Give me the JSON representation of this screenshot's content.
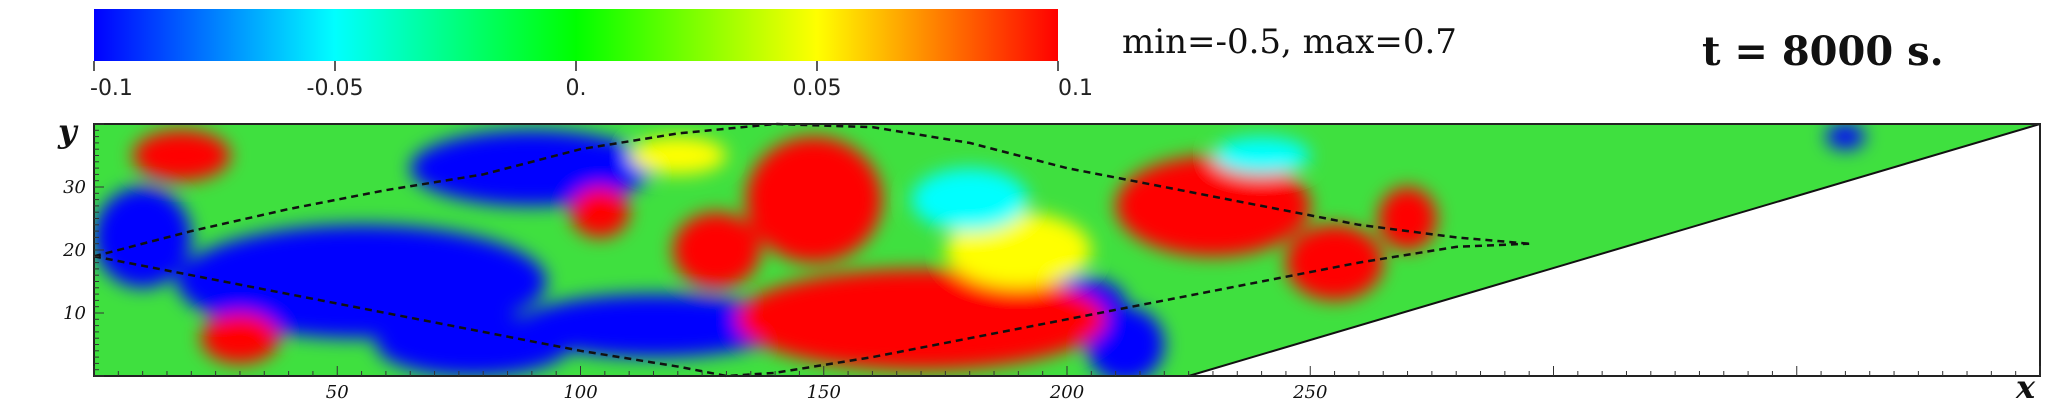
{
  "chart_data": {
    "type": "heatmap",
    "colorbar": {
      "min": -0.1,
      "max": 0.1,
      "tick_labels": [
        "-0.1",
        "-0.05",
        "0.",
        "0.05",
        "0.1"
      ],
      "tick_values": [
        -0.1,
        -0.05,
        0,
        0.05,
        0.1
      ],
      "colormap": [
        "#0000ff",
        "#00ffff",
        "#00ff00",
        "#ffff00",
        "#ff0000"
      ]
    },
    "range_text": "min=-0.5, max=0.7",
    "time_text": "t = 8000 s.",
    "xlabel": "x",
    "ylabel": "y",
    "xlim": [
      0,
      400
    ],
    "ylim": [
      0,
      40
    ],
    "x_ticks": [
      50,
      100,
      150,
      200,
      250
    ],
    "x_tick_labels": [
      "50",
      "100",
      "150",
      "200",
      "250"
    ],
    "y_ticks": [
      10,
      20,
      30
    ],
    "y_tick_labels": [
      "10",
      "20",
      "30"
    ],
    "domain_boundary": [
      [
        225,
        0
      ],
      [
        400,
        40
      ]
    ],
    "dashed_curves": [
      {
        "x": [
          0,
          20,
          40,
          60,
          80,
          100,
          120,
          140,
          160,
          180,
          200,
          220,
          240,
          260,
          280,
          295
        ],
        "y": [
          19,
          23,
          26.5,
          29.5,
          32,
          36,
          38.5,
          40,
          39.5,
          37,
          33,
          30,
          27,
          24,
          22,
          21
        ]
      },
      {
        "x": [
          0,
          20,
          40,
          60,
          80,
          100,
          120,
          130,
          140,
          160,
          180,
          200,
          220,
          240,
          260,
          280,
          295
        ],
        "y": [
          19,
          16,
          13,
          10,
          7,
          4,
          1.5,
          0,
          0.5,
          3,
          6,
          9,
          12,
          15,
          18,
          20.5,
          21
        ]
      }
    ],
    "regions": [
      {
        "value": -0.1,
        "cx": 55,
        "cy": 15,
        "rx": 38,
        "ry": 9
      },
      {
        "value": -0.1,
        "cx": 90,
        "cy": 33,
        "rx": 25,
        "ry": 6
      },
      {
        "value": -0.1,
        "cx": 10,
        "cy": 22,
        "rx": 10,
        "ry": 8
      },
      {
        "value": -0.1,
        "cx": 115,
        "cy": 8,
        "rx": 28,
        "ry": 5
      },
      {
        "value": -0.1,
        "cx": 78,
        "cy": 5,
        "rx": 20,
        "ry": 5
      },
      {
        "value": -0.1,
        "cx": 212,
        "cy": 5,
        "rx": 8,
        "ry": 6
      },
      {
        "value": -0.1,
        "cx": 200,
        "cy": 12,
        "rx": 12,
        "ry": 4
      },
      {
        "value": 0.1,
        "cx": 170,
        "cy": 9,
        "rx": 38,
        "ry": 8
      },
      {
        "value": 0.1,
        "cx": 148,
        "cy": 28,
        "rx": 14,
        "ry": 10
      },
      {
        "value": 0.1,
        "cx": 230,
        "cy": 27,
        "rx": 20,
        "ry": 8
      },
      {
        "value": 0.1,
        "cx": 128,
        "cy": 20,
        "rx": 9,
        "ry": 6
      },
      {
        "value": 0.1,
        "cx": 18,
        "cy": 35,
        "rx": 10,
        "ry": 4
      },
      {
        "value": 0.1,
        "cx": 30,
        "cy": 6,
        "rx": 8,
        "ry": 4
      },
      {
        "value": 0.1,
        "cx": 104,
        "cy": 26,
        "rx": 6,
        "ry": 4
      },
      {
        "value": 0.1,
        "cx": 255,
        "cy": 18,
        "rx": 10,
        "ry": 6
      },
      {
        "value": 0.05,
        "cx": 190,
        "cy": 20,
        "rx": 15,
        "ry": 6
      },
      {
        "value": -0.05,
        "cx": 180,
        "cy": 28,
        "rx": 12,
        "ry": 5
      },
      {
        "value": 0.05,
        "cx": 120,
        "cy": 35,
        "rx": 10,
        "ry": 3
      },
      {
        "value": -0.1,
        "cx": 360,
        "cy": 38,
        "rx": 4,
        "ry": 2
      },
      {
        "value": 0.1,
        "cx": 270,
        "cy": 25,
        "rx": 6,
        "ry": 5
      },
      {
        "value": -0.05,
        "cx": 240,
        "cy": 35,
        "rx": 10,
        "ry": 3
      }
    ]
  }
}
